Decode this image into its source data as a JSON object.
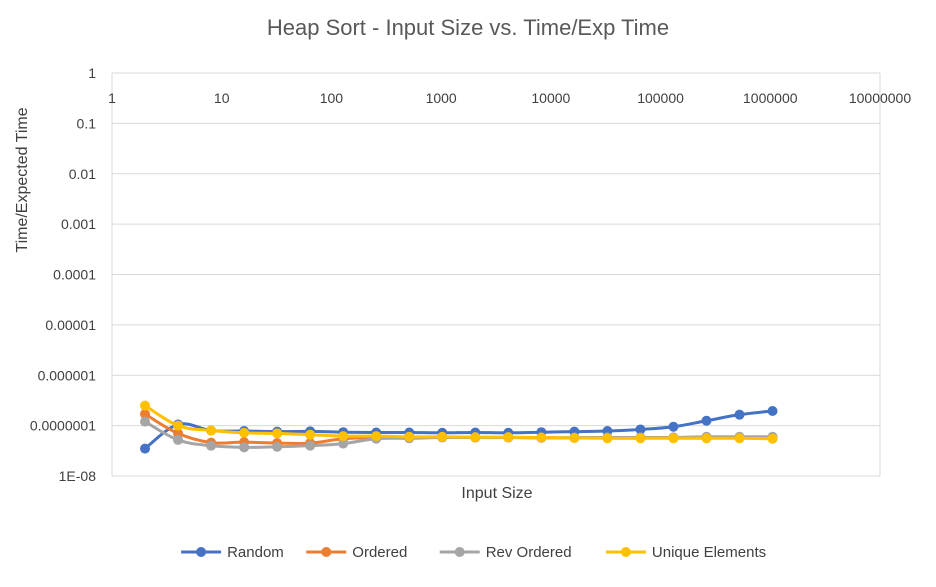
{
  "chart_data": {
    "type": "line",
    "title": "Heap Sort - Input Size vs. Time/Exp Time",
    "xlabel": "Input Size",
    "ylabel": "Time/Expected Time",
    "x_scale": "log",
    "y_scale": "log",
    "xlim": [
      1,
      10000000
    ],
    "ylim": [
      1e-08,
      1
    ],
    "x_tick_values": [
      1,
      10,
      100,
      1000,
      10000,
      100000,
      1000000,
      10000000
    ],
    "x_tick_labels": [
      "1",
      "10",
      "100",
      "1000",
      "10000",
      "100000",
      "1000000",
      "10000000"
    ],
    "y_tick_values": [
      1,
      0.1,
      0.01,
      0.001,
      0.0001,
      1e-05,
      1e-06,
      1e-07,
      1e-08
    ],
    "y_tick_labels": [
      "1",
      "0.1",
      "0.01",
      "0.001",
      "0.0001",
      "0.00001",
      "0.000001",
      "0.0000001",
      "1E-08"
    ],
    "gridlines": "horizontal",
    "legend_position": "bottom",
    "x": [
      2,
      4,
      8,
      16,
      32,
      64,
      128,
      256,
      512,
      1024,
      2048,
      4096,
      8192,
      16384,
      32768,
      65536,
      131072,
      262144,
      524288,
      1048576
    ],
    "series": [
      {
        "name": "Random",
        "color": "#4472C4",
        "values": [
          3.5e-08,
          1.05e-07,
          8e-08,
          7.8e-08,
          7.6e-08,
          7.7e-08,
          7.4e-08,
          7.3e-08,
          7.3e-08,
          7.2e-08,
          7.3e-08,
          7.2e-08,
          7.4e-08,
          7.6e-08,
          7.8e-08,
          8.4e-08,
          9.5e-08,
          1.25e-07,
          1.65e-07,
          1.95e-07
        ]
      },
      {
        "name": "Ordered",
        "color": "#ED7D31",
        "values": [
          1.7e-07,
          7e-08,
          4.6e-08,
          4.7e-08,
          4.5e-08,
          4.5e-08,
          5.5e-08,
          5.8e-08,
          5.9e-08,
          5.9e-08,
          5.8e-08,
          5.8e-08,
          5.8e-08,
          5.7e-08,
          5.8e-08,
          5.8e-08,
          5.8e-08,
          5.9e-08,
          5.8e-08,
          5.8e-08
        ]
      },
      {
        "name": "Rev Ordered",
        "color": "#A5A5A5",
        "values": [
          1.2e-07,
          5.2e-08,
          4e-08,
          3.7e-08,
          3.8e-08,
          4e-08,
          4.4e-08,
          5.5e-08,
          5.6e-08,
          5.8e-08,
          5.8e-08,
          5.8e-08,
          5.7e-08,
          5.8e-08,
          5.8e-08,
          5.8e-08,
          5.8e-08,
          6e-08,
          6e-08,
          6e-08
        ]
      },
      {
        "name": "Unique Elements",
        "color": "#FFC000",
        "values": [
          2.5e-07,
          1e-07,
          8e-08,
          7.2e-08,
          7e-08,
          6.6e-08,
          6.2e-08,
          6.2e-08,
          6e-08,
          6e-08,
          5.9e-08,
          5.9e-08,
          5.8e-08,
          5.7e-08,
          5.6e-08,
          5.6e-08,
          5.6e-08,
          5.6e-08,
          5.6e-08,
          5.5e-08
        ]
      }
    ]
  }
}
